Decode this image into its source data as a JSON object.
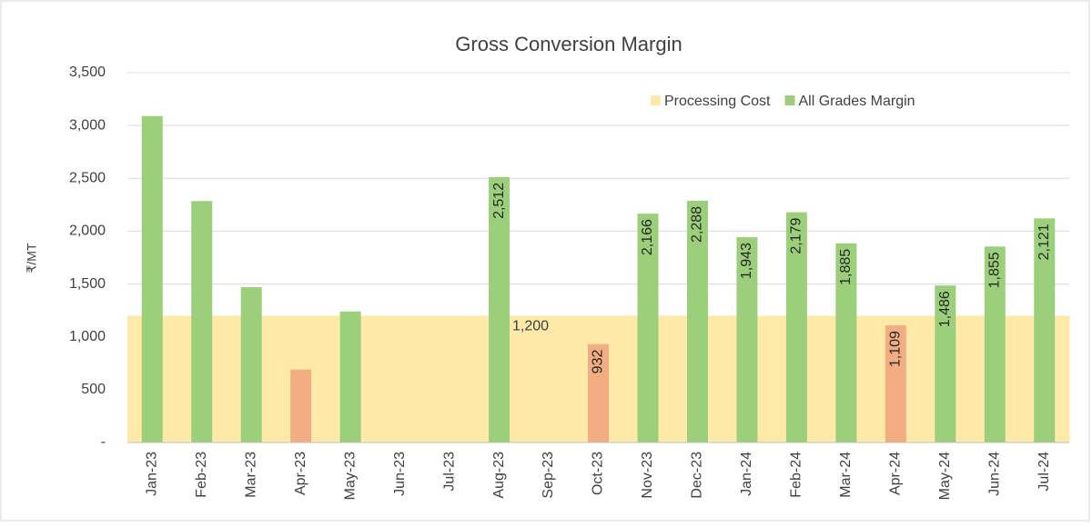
{
  "chart_data": {
    "type": "bar",
    "title": "Gross Conversion Margin",
    "y_label": "₹/MT",
    "categories": [
      "Jan-23",
      "Feb-23",
      "Mar-23",
      "Apr-23",
      "May-23",
      "Jun-23",
      "Jul-23",
      "Aug-23",
      "Sep-23",
      "Oct-23",
      "Nov-23",
      "Dec-23",
      "Jan-24",
      "Feb-24",
      "Mar-24",
      "Apr-24",
      "May-24",
      "Jun-24",
      "Jul-24"
    ],
    "series": [
      {
        "name": "Processing Cost",
        "color": "#ffe9a8",
        "kind": "area",
        "values": [
          1200,
          1200,
          1200,
          1200,
          1200,
          1200,
          1200,
          1200,
          1200,
          1200,
          1200,
          1200,
          1200,
          1200,
          1200,
          1200,
          1200,
          1200,
          1200
        ],
        "value_labels": [
          null,
          null,
          null,
          null,
          null,
          null,
          null,
          null,
          "1,200",
          null,
          null,
          null,
          null,
          null,
          null,
          null,
          null,
          null,
          null
        ]
      },
      {
        "name": "All Grades Margin",
        "color": "#9ccf7a",
        "kind": "bar",
        "values": [
          3090,
          2285,
          1470,
          690,
          1240,
          null,
          null,
          2512,
          null,
          932,
          2166,
          2288,
          1943,
          2179,
          1885,
          1109,
          1486,
          1855,
          2121
        ],
        "colors": [
          "#9ccf7a",
          "#9ccf7a",
          "#9ccf7a",
          "#f2ae82",
          "#9ccf7a",
          null,
          null,
          "#9ccf7a",
          null,
          "#f2ae82",
          "#9ccf7a",
          "#9ccf7a",
          "#9ccf7a",
          "#9ccf7a",
          "#9ccf7a",
          "#f2ae82",
          "#9ccf7a",
          "#9ccf7a",
          "#9ccf7a"
        ],
        "value_labels": [
          null,
          null,
          null,
          null,
          null,
          null,
          null,
          "2,512",
          null,
          "932",
          "2,166",
          "2,288",
          "1,943",
          "2,179",
          "1,885",
          "1,109",
          "1,486",
          "1,855",
          "2,121"
        ]
      }
    ],
    "ylim": [
      0,
      3500
    ],
    "yticks": [
      {
        "value": 0,
        "label": "-"
      },
      {
        "value": 500,
        "label": "500"
      },
      {
        "value": 1000,
        "label": "1,000"
      },
      {
        "value": 1500,
        "label": "1,500"
      },
      {
        "value": 2000,
        "label": "2,000"
      },
      {
        "value": 2500,
        "label": "2,500"
      },
      {
        "value": 3000,
        "label": "3,000"
      },
      {
        "value": 3500,
        "label": "3,500"
      }
    ],
    "grid": true,
    "legend": "upper right"
  }
}
